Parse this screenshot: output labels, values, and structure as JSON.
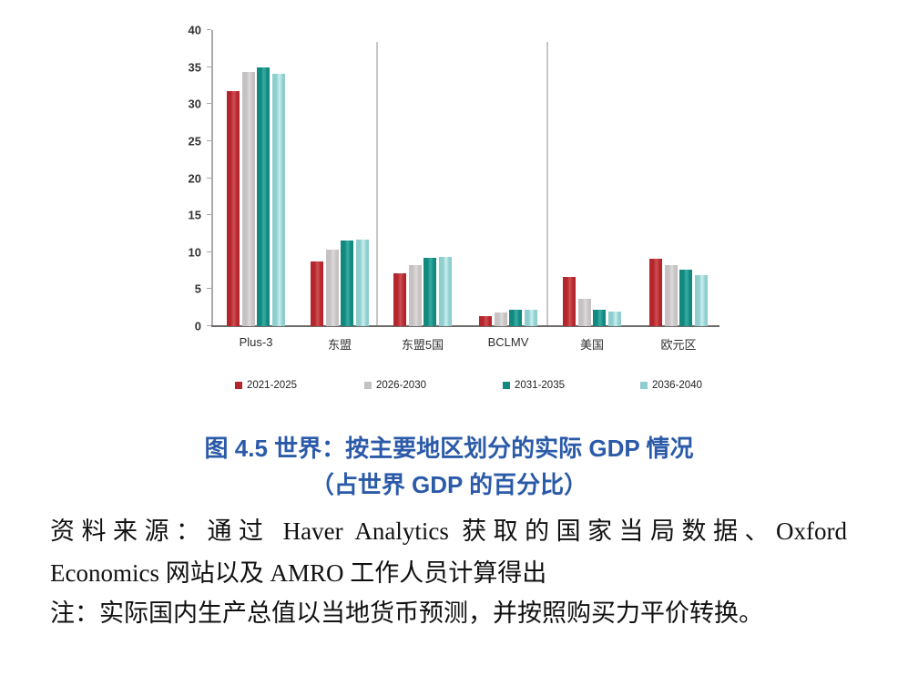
{
  "figure": {
    "title_line1": "图 4.5 世界：按主要地区划分的实际 GDP 情况",
    "title_line2": "（占世界 GDP 的百分比）",
    "title_color": "#2B5AA8",
    "source_line1": "资料来源：通过 Haver Analytics 获取的国家当局数据、Oxford",
    "source_line2": "Economics 网站以及 AMRO 工作人员计算得出",
    "note": "注：实际国内生产总值以当地货币预测，并按照购买力平价转换。"
  },
  "chart_data": {
    "type": "bar",
    "title": "图 4.5 世界：按主要地区划分的实际 GDP 情况（占世界 GDP 的百分比）",
    "xlabel": "",
    "ylabel": "",
    "ylim": [
      0,
      40
    ],
    "yticks": [
      0,
      5,
      10,
      15,
      20,
      25,
      30,
      35,
      40
    ],
    "grid": "off",
    "legend_position": "bottom",
    "categories": [
      "Plus-3",
      "东盟",
      "东盟5国",
      "BCLMV",
      "美国",
      "欧元区"
    ],
    "separators_after_category_index": [
      1,
      3
    ],
    "series": [
      {
        "name": "2021-2025",
        "color": "#B5262C",
        "highlight": "#CE5054",
        "values": [
          31.8,
          8.7,
          7.1,
          1.3,
          6.7,
          9.1
        ]
      },
      {
        "name": "2026-2030",
        "color": "#C6C1C2",
        "highlight": "#DEDADB",
        "values": [
          34.4,
          10.4,
          8.3,
          1.8,
          3.7,
          8.2
        ]
      },
      {
        "name": "2031-2035",
        "color": "#11897F",
        "highlight": "#39ADA3",
        "values": [
          34.9,
          11.6,
          9.2,
          2.2,
          2.2,
          7.6
        ]
      },
      {
        "name": "2036-2040",
        "color": "#8FCECE",
        "highlight": "#C8F0EE",
        "values": [
          34.1,
          11.7,
          9.3,
          2.2,
          2.0,
          6.9
        ]
      }
    ]
  }
}
